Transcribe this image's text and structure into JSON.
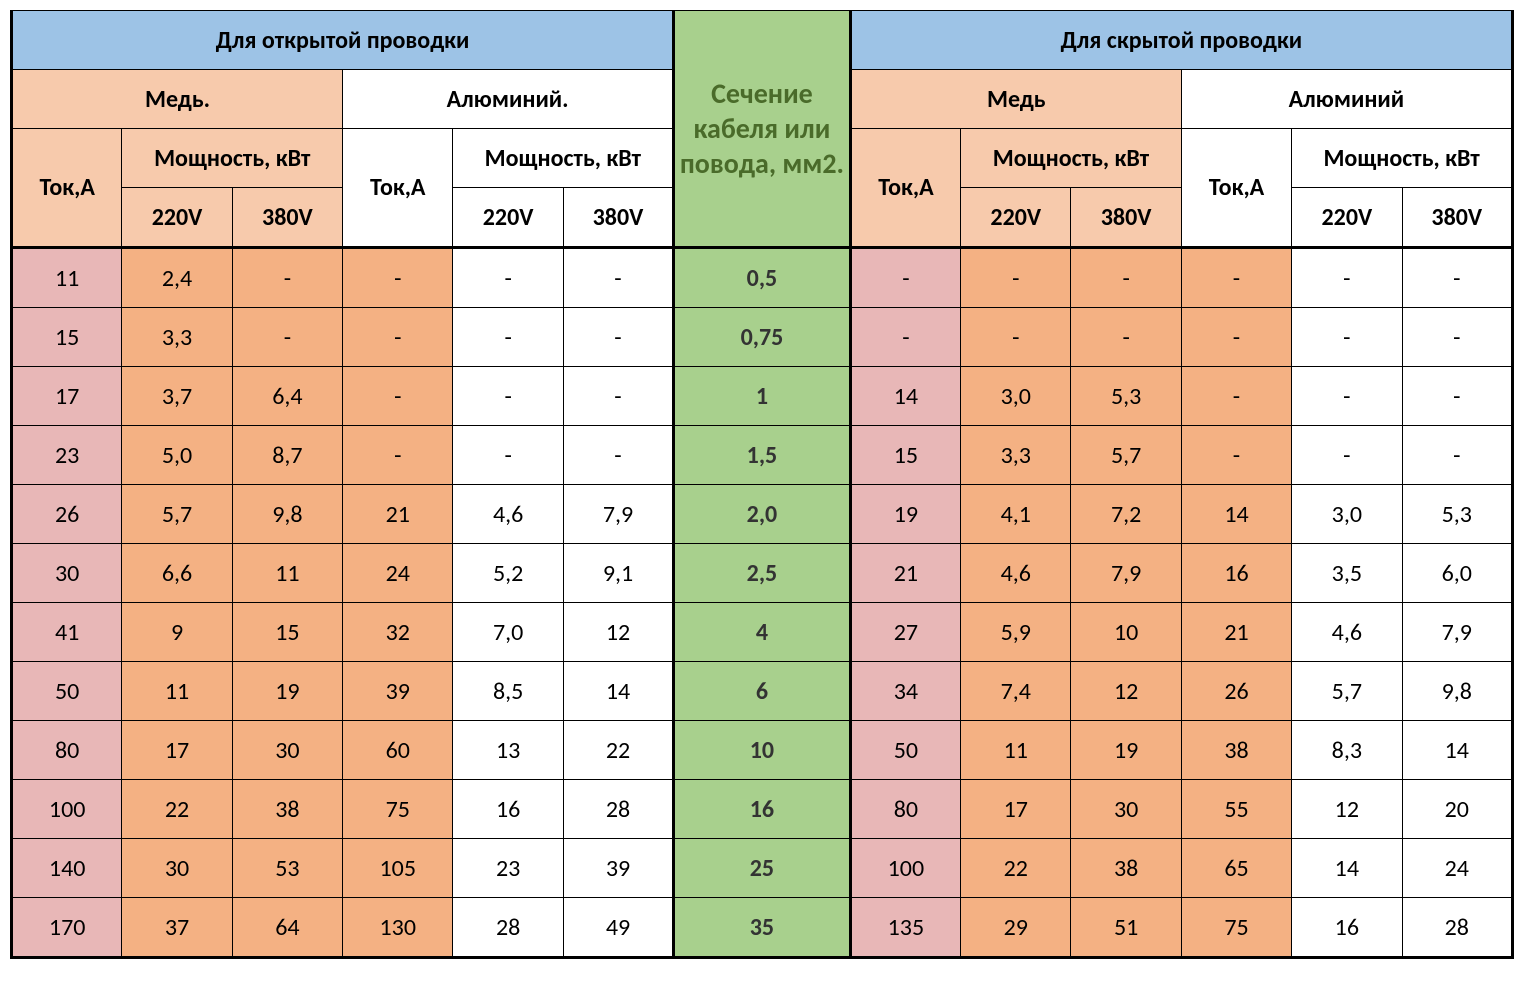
{
  "colors": {
    "blue": "#9dc3e6",
    "peach": "#f7caac",
    "white": "#ffffff",
    "pink": "#e8b7b7",
    "orange": "#f4b183",
    "green": "#a8d08d",
    "border": "#000000",
    "green_text": "#4a6b2a"
  },
  "header": {
    "open_wiring": "Для открытой проводки",
    "hidden_wiring": "Для скрытой проводки",
    "copper_dot": "Медь.",
    "aluminum_dot": "Алюминий.",
    "copper": "Медь",
    "aluminum": "Алюминий",
    "current": "Ток,А",
    "power": "Мощность, кВт",
    "v220": "220V",
    "v380": "380V",
    "section": "Сечение кабеля или повода, мм2."
  },
  "rows": [
    {
      "l_cu": [
        "11",
        "2,4",
        "-"
      ],
      "l_al": [
        "-",
        "-",
        "-"
      ],
      "sec": "0,5",
      "r_cu": [
        "-",
        "-",
        "-"
      ],
      "r_al": [
        "-",
        "-",
        "-"
      ]
    },
    {
      "l_cu": [
        "15",
        "3,3",
        "-"
      ],
      "l_al": [
        "-",
        "-",
        "-"
      ],
      "sec": "0,75",
      "r_cu": [
        "-",
        "-",
        "-"
      ],
      "r_al": [
        "-",
        "-",
        "-"
      ]
    },
    {
      "l_cu": [
        "17",
        "3,7",
        "6,4"
      ],
      "l_al": [
        "-",
        "-",
        "-"
      ],
      "sec": "1",
      "r_cu": [
        "14",
        "3,0",
        "5,3"
      ],
      "r_al": [
        "-",
        "-",
        "-"
      ]
    },
    {
      "l_cu": [
        "23",
        "5,0",
        "8,7"
      ],
      "l_al": [
        "-",
        "-",
        "-"
      ],
      "sec": "1,5",
      "r_cu": [
        "15",
        "3,3",
        "5,7"
      ],
      "r_al": [
        "-",
        "-",
        "-"
      ]
    },
    {
      "l_cu": [
        "26",
        "5,7",
        "9,8"
      ],
      "l_al": [
        "21",
        "4,6",
        "7,9"
      ],
      "sec": "2,0",
      "r_cu": [
        "19",
        "4,1",
        "7,2"
      ],
      "r_al": [
        "14",
        "3,0",
        "5,3"
      ]
    },
    {
      "l_cu": [
        "30",
        "6,6",
        "11"
      ],
      "l_al": [
        "24",
        "5,2",
        "9,1"
      ],
      "sec": "2,5",
      "r_cu": [
        "21",
        "4,6",
        "7,9"
      ],
      "r_al": [
        "16",
        "3,5",
        "6,0"
      ]
    },
    {
      "l_cu": [
        "41",
        "9",
        "15"
      ],
      "l_al": [
        "32",
        "7,0",
        "12"
      ],
      "sec": "4",
      "r_cu": [
        "27",
        "5,9",
        "10"
      ],
      "r_al": [
        "21",
        "4,6",
        "7,9"
      ]
    },
    {
      "l_cu": [
        "50",
        "11",
        "19"
      ],
      "l_al": [
        "39",
        "8,5",
        "14"
      ],
      "sec": "6",
      "r_cu": [
        "34",
        "7,4",
        "12"
      ],
      "r_al": [
        "26",
        "5,7",
        "9,8"
      ]
    },
    {
      "l_cu": [
        "80",
        "17",
        "30"
      ],
      "l_al": [
        "60",
        "13",
        "22"
      ],
      "sec": "10",
      "r_cu": [
        "50",
        "11",
        "19"
      ],
      "r_al": [
        "38",
        "8,3",
        "14"
      ]
    },
    {
      "l_cu": [
        "100",
        "22",
        "38"
      ],
      "l_al": [
        "75",
        "16",
        "28"
      ],
      "sec": "16",
      "r_cu": [
        "80",
        "17",
        "30"
      ],
      "r_al": [
        "55",
        "12",
        "20"
      ]
    },
    {
      "l_cu": [
        "140",
        "30",
        "53"
      ],
      "l_al": [
        "105",
        "23",
        "39"
      ],
      "sec": "25",
      "r_cu": [
        "100",
        "22",
        "38"
      ],
      "r_al": [
        "65",
        "14",
        "24"
      ]
    },
    {
      "l_cu": [
        "170",
        "37",
        "64"
      ],
      "l_al": [
        "130",
        "28",
        "49"
      ],
      "sec": "35",
      "r_cu": [
        "135",
        "29",
        "51"
      ],
      "r_al": [
        "75",
        "16",
        "28"
      ]
    }
  ]
}
